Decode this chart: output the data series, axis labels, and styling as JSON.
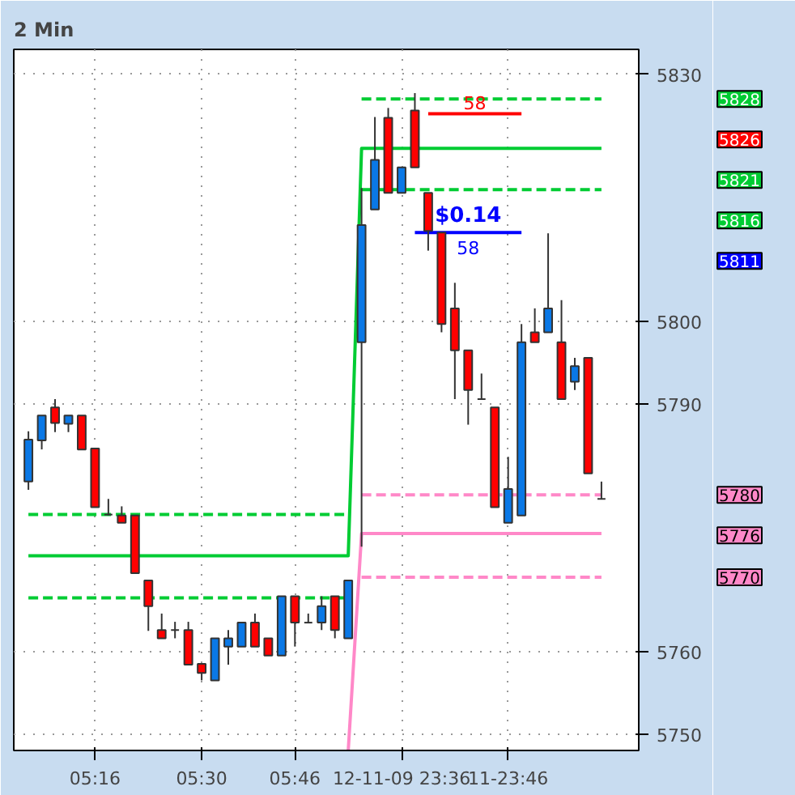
{
  "chart_data": {
    "type": "candlestick",
    "title": "2 Min",
    "legend": "right",
    "ohlc": [
      [
        5780.6,
        5786.7,
        5779.6,
        5785.7
      ],
      [
        5785.6,
        5788.6,
        5784.5,
        5788.6
      ],
      [
        5789.6,
        5790.6,
        5786.6,
        5787.7
      ],
      [
        5787.6,
        5788.6,
        5786.6,
        5788.6
      ],
      [
        5788.6,
        5788.6,
        5784.5,
        5784.5
      ],
      [
        5784.6,
        5784.6,
        5777.5,
        5777.5
      ],
      [
        5776.6,
        5778.5,
        5776.5,
        5776.6
      ],
      [
        5776.5,
        5777.6,
        5775.6,
        5775.6
      ],
      [
        5776.5,
        5776.5,
        5769.5,
        5769.5
      ],
      [
        5768.6,
        5768.6,
        5762.5,
        5765.5
      ],
      [
        5762.6,
        5764.6,
        5761.6,
        5761.6
      ],
      [
        5762.6,
        5763.6,
        5761.6,
        5762.6
      ],
      [
        5762.6,
        5763.6,
        5758.4,
        5758.4
      ],
      [
        5758.5,
        5758.5,
        5756.5,
        5757.4
      ],
      [
        5756.5,
        5761.6,
        5756.5,
        5761.6
      ],
      [
        5760.6,
        5762.6,
        5758.4,
        5761.6
      ],
      [
        5760.6,
        5763.5,
        5760.6,
        5763.5
      ],
      [
        5763.5,
        5764.6,
        5760.6,
        5760.6
      ],
      [
        5761.6,
        5761.6,
        5759.5,
        5759.5
      ],
      [
        5759.5,
        5766.7,
        5759.5,
        5766.7
      ],
      [
        5766.7,
        5766.7,
        5760.6,
        5763.5
      ],
      [
        5763.5,
        5764.6,
        5763.5,
        5763.5
      ],
      [
        5763.5,
        5766.7,
        5762.6,
        5765.5
      ],
      [
        5766.7,
        5766.7,
        5761.6,
        5762.6
      ],
      [
        5761.6,
        5768.6,
        5761.6,
        5768.6
      ],
      [
        5797.5,
        5816.2,
        5772.7,
        5811.7
      ],
      [
        5813.6,
        5824.8,
        5813.6,
        5819.6
      ],
      [
        5824.7,
        5825.9,
        5815.6,
        5815.6
      ],
      [
        5815.6,
        5818.7,
        5815.6,
        5818.7
      ],
      [
        5825.6,
        5827.7,
        5818.7,
        5818.7
      ],
      [
        5815.6,
        5815.6,
        5808.6,
        5811.0
      ],
      [
        5810.8,
        5810.8,
        5798.7,
        5799.7
      ],
      [
        5801.6,
        5804.7,
        5790.6,
        5796.5
      ],
      [
        5796.5,
        5796.5,
        5787.5,
        5791.7
      ],
      [
        5790.6,
        5793.7,
        5790.6,
        5790.6
      ],
      [
        5789.6,
        5789.6,
        5777.5,
        5777.5
      ],
      [
        5775.6,
        5783.6,
        5775.6,
        5779.7
      ],
      [
        5776.5,
        5799.7,
        5776.5,
        5797.5
      ],
      [
        5798.7,
        5801.6,
        5797.5,
        5797.5
      ],
      [
        5798.7,
        5810.7,
        5798.7,
        5801.6
      ],
      [
        5797.5,
        5802.6,
        5790.6,
        5790.6
      ],
      [
        5792.7,
        5795.6,
        5791.7,
        5794.6
      ],
      [
        5795.6,
        5795.6,
        5781.6,
        5781.6
      ],
      [
        5778.5,
        5780.6,
        5778.5,
        5778.5
      ]
    ],
    "colors": [
      "#0a78e6",
      "#0a78e6",
      "#ff0000",
      "#0a78e6",
      "#ff0000",
      "#ff0000",
      "#333333",
      "#ff0000",
      "#ff0000",
      "#ff0000",
      "#ff0000",
      "#333333",
      "#ff0000",
      "#ff0000",
      "#0a78e6",
      "#0a78e6",
      "#0a78e6",
      "#ff0000",
      "#ff0000",
      "#0a78e6",
      "#ff0000",
      "#333333",
      "#0a78e6",
      "#ff0000",
      "#0a78e6",
      "#0a78e6",
      "#0a78e6",
      "#ff0000",
      "#0a78e6",
      "#ff0000",
      "#ff0000",
      "#ff0000",
      "#ff0000",
      "#ff0000",
      "#333333",
      "#ff0000",
      "#0a78e6",
      "#0a78e6",
      "#ff0000",
      "#0a78e6",
      "#ff0000",
      "#0a78e6",
      "#ff0000",
      "#333333"
    ],
    "series": [
      {
        "type": "line",
        "color": "#00cc33",
        "line_style": "solid",
        "values": [
          5771.6,
          5771.6,
          5771.6,
          5771.6,
          5771.6,
          5771.6,
          5771.6,
          5771.6,
          5771.6,
          5771.6,
          5771.6,
          5771.6,
          5771.6,
          5771.6,
          5771.6,
          5771.6,
          5771.6,
          5771.6,
          5771.6,
          5771.6,
          5771.6,
          5771.6,
          5771.6,
          5771.6,
          5771.6,
          5821,
          5821,
          5821,
          5821,
          5821,
          5821,
          5821,
          5821,
          5821,
          5821,
          5821,
          5821,
          5821,
          5821,
          5821,
          5821,
          5821,
          5821,
          5821
        ],
        "name": "5821"
      },
      {
        "type": "line",
        "color": "#00cc33",
        "line_style": "dashed",
        "values": [
          5776.6,
          5776.6,
          5776.6,
          5776.6,
          5776.6,
          5776.6,
          5776.6,
          5776.6,
          5776.6,
          5776.6,
          5776.6,
          5776.6,
          5776.6,
          5776.6,
          5776.6,
          5776.6,
          5776.6,
          5776.6,
          5776.6,
          5776.6,
          5776.6,
          5776.6,
          5776.6,
          5776.6,
          5776.6,
          null,
          null,
          null,
          null,
          null,
          null,
          null,
          null,
          null,
          null,
          null,
          null,
          null,
          null,
          null,
          null,
          null,
          null,
          null
        ]
      },
      {
        "type": "line",
        "color": "#00cc33",
        "line_style": "dashed",
        "values": [
          5766.5,
          5766.5,
          5766.5,
          5766.5,
          5766.5,
          5766.5,
          5766.5,
          5766.5,
          5766.5,
          5766.5,
          5766.5,
          5766.5,
          5766.5,
          5766.5,
          5766.5,
          5766.5,
          5766.5,
          5766.5,
          5766.5,
          5766.5,
          5766.5,
          5766.5,
          5766.5,
          5766.5,
          5766.5,
          null,
          null,
          null,
          null,
          null,
          null,
          null,
          null,
          null,
          null,
          null,
          null,
          null,
          null,
          null,
          null,
          null,
          null,
          null
        ]
      },
      {
        "type": "line",
        "color": "#00cc33",
        "line_style": "dashed",
        "values": [
          null,
          null,
          null,
          null,
          null,
          null,
          null,
          null,
          null,
          null,
          null,
          null,
          null,
          null,
          null,
          null,
          null,
          null,
          null,
          null,
          null,
          null,
          null,
          null,
          null,
          5827,
          5827,
          5827,
          5827,
          5827,
          5827,
          5827,
          5827,
          5827,
          5827,
          5827,
          5827,
          5827,
          5827,
          5827,
          5827,
          5827,
          5827,
          5827
        ],
        "name": "5828"
      },
      {
        "type": "line",
        "color": "#00cc33",
        "line_style": "dashed",
        "values": [
          null,
          null,
          null,
          null,
          null,
          null,
          null,
          null,
          null,
          null,
          null,
          null,
          null,
          null,
          null,
          null,
          null,
          null,
          null,
          null,
          null,
          null,
          null,
          null,
          null,
          5816,
          5816,
          5816,
          5816,
          5816,
          5816,
          5816,
          5816,
          5816,
          5816,
          5816,
          5816,
          5816,
          5816,
          5816,
          5816,
          5816,
          5816,
          5816
        ],
        "name": "5816"
      },
      {
        "type": "line",
        "color": "#ff0000",
        "line_style": "solid",
        "values": [
          null,
          null,
          null,
          null,
          null,
          null,
          null,
          null,
          null,
          null,
          null,
          null,
          null,
          null,
          null,
          null,
          null,
          null,
          null,
          null,
          null,
          null,
          null,
          null,
          null,
          null,
          null,
          null,
          null,
          null,
          5825.2,
          5825.2,
          5825.2,
          5825.2,
          5825.2,
          5825.2,
          5825.2,
          5825.2,
          null,
          null,
          null,
          null,
          null,
          null
        ],
        "name": "5826"
      },
      {
        "type": "line",
        "color": "#0000ff",
        "line_style": "solid",
        "values": [
          null,
          null,
          null,
          null,
          null,
          null,
          null,
          null,
          null,
          null,
          null,
          null,
          null,
          null,
          null,
          null,
          null,
          null,
          null,
          null,
          null,
          null,
          null,
          null,
          null,
          null,
          null,
          null,
          null,
          5810.8,
          5810.8,
          5810.8,
          5810.8,
          5810.8,
          5810.8,
          5810.8,
          5810.8,
          5810.8,
          null,
          null,
          null,
          null,
          null,
          null
        ],
        "name": "5811"
      },
      {
        "type": "line",
        "color": "#ff88c8",
        "line_style": "dashed",
        "values": [
          null,
          null,
          null,
          null,
          null,
          null,
          null,
          null,
          null,
          null,
          null,
          null,
          null,
          null,
          null,
          null,
          null,
          null,
          null,
          null,
          null,
          null,
          null,
          null,
          null,
          5779,
          5779,
          5779,
          5779,
          5779,
          5779,
          5779,
          5779,
          5779,
          5779,
          5779,
          5779,
          5779,
          5779,
          5779,
          5779,
          5779,
          5779,
          5779
        ],
        "name": "5780"
      },
      {
        "type": "line",
        "color": "#ff88c8",
        "line_style": "solid",
        "values": [
          null,
          null,
          null,
          null,
          null,
          null,
          null,
          null,
          null,
          null,
          null,
          null,
          null,
          null,
          null,
          null,
          null,
          null,
          null,
          null,
          null,
          null,
          null,
          null,
          5748,
          5774.3,
          5774.3,
          5774.3,
          5774.3,
          5774.3,
          5774.3,
          5774.3,
          5774.3,
          5774.3,
          5774.3,
          5774.3,
          5774.3,
          5774.3,
          5774.3,
          5774.3,
          5774.3,
          5774.3,
          5774.3,
          5774.3
        ],
        "name": "5776"
      },
      {
        "type": "line",
        "color": "#ff88c8",
        "line_style": "dashed",
        "values": [
          null,
          null,
          null,
          null,
          null,
          null,
          null,
          null,
          null,
          null,
          null,
          null,
          null,
          null,
          null,
          null,
          null,
          null,
          null,
          null,
          null,
          null,
          null,
          null,
          null,
          5769,
          5769,
          5769,
          5769,
          5769,
          5769,
          5769,
          5769,
          5769,
          5769,
          5769,
          5769,
          5769,
          5769,
          5769,
          5769,
          5769,
          5769,
          5769
        ],
        "name": "5770"
      }
    ],
    "annotations": [
      "58",
      "$0.14",
      "58"
    ],
    "categories": [
      null,
      null,
      null,
      null,
      null,
      "05:16",
      null,
      null,
      null,
      null,
      null,
      null,
      null,
      "05:30",
      null,
      null,
      null,
      null,
      null,
      null,
      "05:46",
      null,
      null,
      null,
      null,
      null,
      null,
      null,
      "12-11-09 23:36",
      null,
      null,
      null,
      null,
      null,
      null,
      null,
      "11-23:46",
      null,
      null,
      null,
      null,
      null,
      null,
      null
    ],
    "ylim": [
      5748,
      5833
    ],
    "yticks": [
      5750,
      5760,
      5790,
      5800,
      5830
    ],
    "grid": true
  }
}
